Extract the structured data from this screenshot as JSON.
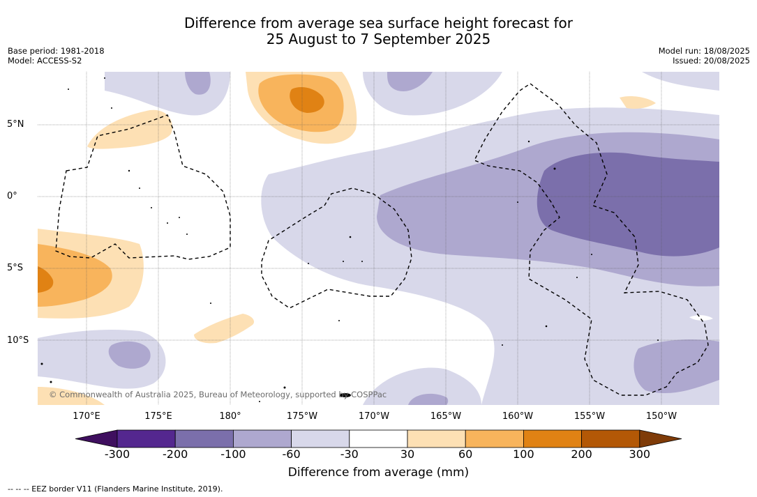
{
  "title_line1": "Difference from average sea surface height forecast for",
  "title_line2": "25 August to 7 September 2025",
  "base_period": "Base period: 1981-2018",
  "model": "Model: ACCESS-S2",
  "model_run": "Model run: 18/08/2025",
  "issued": "Issued: 20/08/2025",
  "copyright": "© Commonwealth of Australia 2025, Bureau of Meteorology, supported by COSPPac",
  "lat_labels": [
    "5°N",
    "0°",
    "5°S",
    "10°S"
  ],
  "lon_labels": [
    "170°E",
    "175°E",
    "180°",
    "175°W",
    "170°W",
    "165°W",
    "160°W",
    "155°W",
    "150°W"
  ],
  "colorbar": {
    "title": "Difference from average (mm)",
    "ticks": [
      "-300",
      "-200",
      "-100",
      "-60",
      "-30",
      "30",
      "60",
      "100",
      "200",
      "300"
    ],
    "colors": [
      "#3f0f5f",
      "#54278f",
      "#7b6fab",
      "#aea8cf",
      "#d8d8ea",
      "#ffffff",
      "#fde0b4",
      "#f8b45c",
      "#e08214",
      "#b35806",
      "#7f3b08"
    ]
  },
  "footer": "--  --  -- EEZ border V11 (Flanders Marine Institute, 2019)."
}
